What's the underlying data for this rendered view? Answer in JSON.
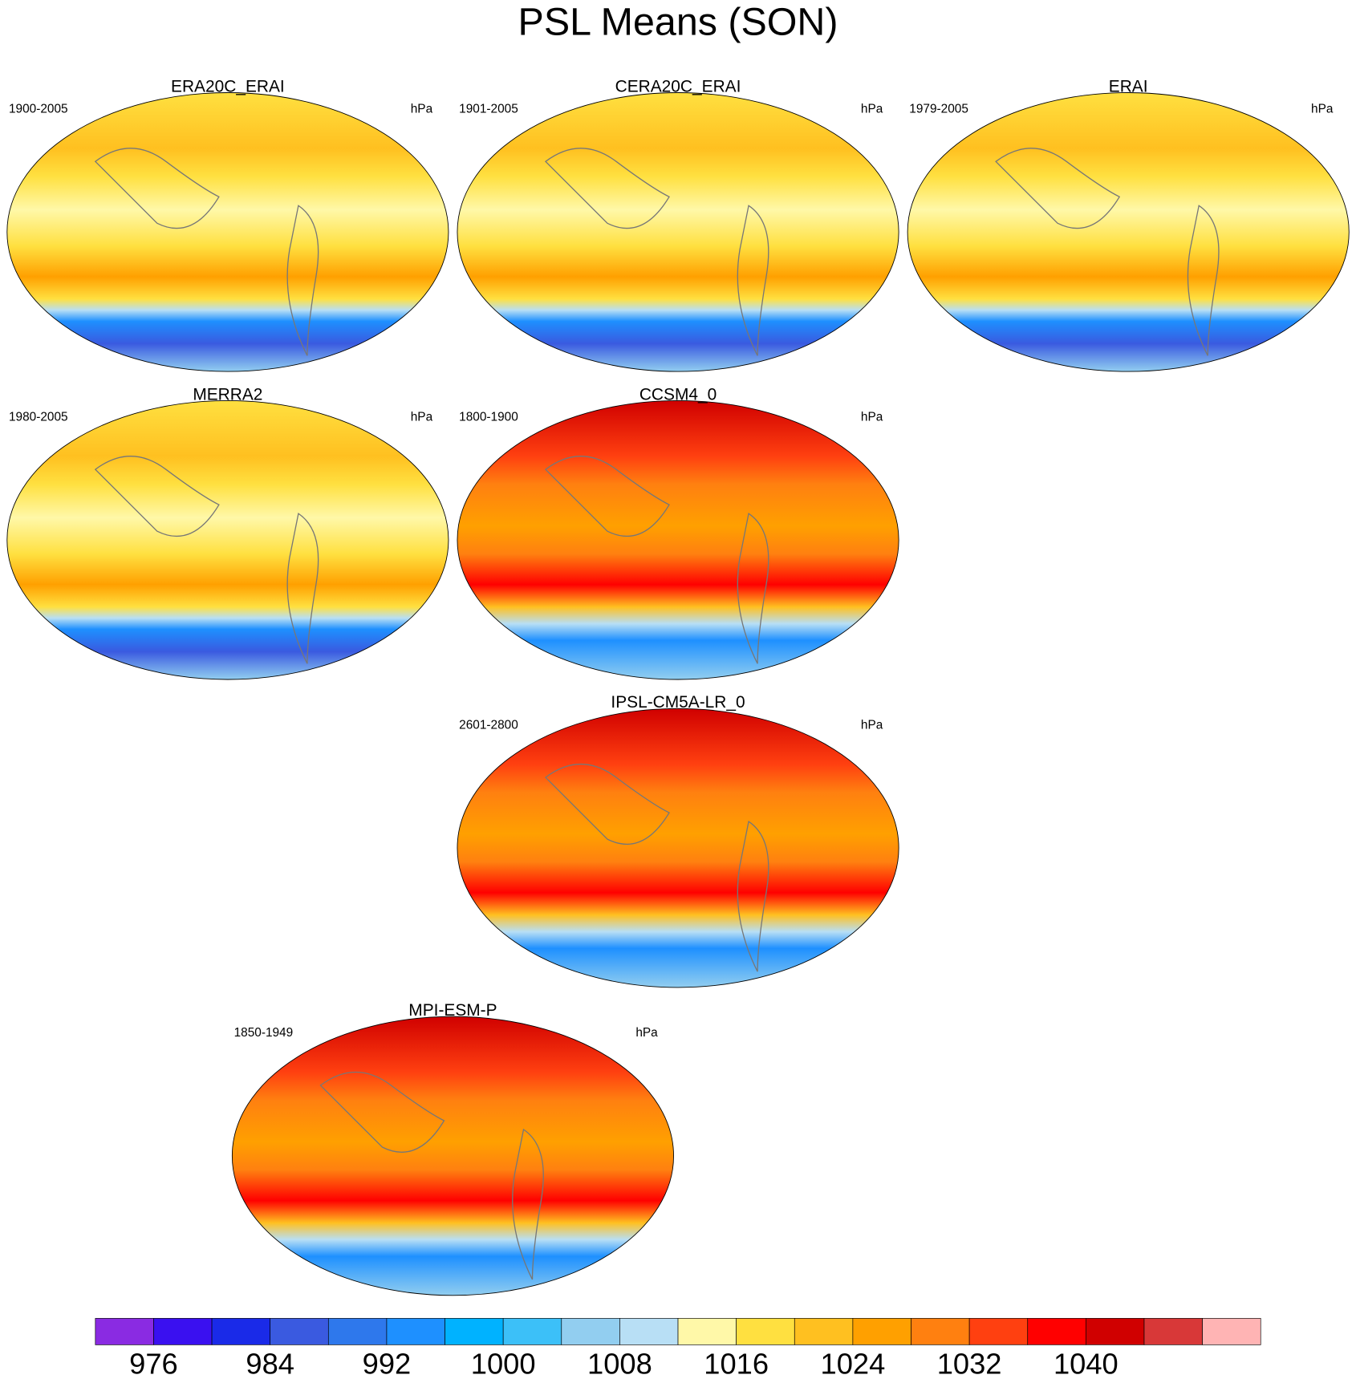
{
  "title": "PSL Means (SON)",
  "panels": [
    {
      "title": "ERA20C_ERAI",
      "period": "1900-2005",
      "units": "hPa"
    },
    {
      "title": "CERA20C_ERAI",
      "period": "1901-2005",
      "units": "hPa"
    },
    {
      "title": "ERAI",
      "period": "1979-2005",
      "units": "hPa"
    },
    {
      "title": "MERRA2",
      "period": "1980-2005",
      "units": "hPa"
    },
    {
      "title": "CCSM4_0",
      "period": "1800-1900",
      "units": "hPa"
    },
    {
      "title": "IPSL-CM5A-LR_0",
      "period": "2601-2800",
      "units": "hPa"
    },
    {
      "title": "MPI-ESM-P",
      "period": "1850-1949",
      "units": "hPa"
    }
  ],
  "colorbar": {
    "colors": [
      "#8a2be2",
      "#3a10f0",
      "#1a2ae8",
      "#3a5ae0",
      "#2e78ec",
      "#1e90ff",
      "#00b2ff",
      "#3cc0f8",
      "#92cef0",
      "#b8dff5",
      "#fff8a8",
      "#ffe040",
      "#ffc020",
      "#ffa000",
      "#ff8010",
      "#ff4010",
      "#ff0000",
      "#d00000",
      "#d83838",
      "#ffb4b4"
    ],
    "labels": [
      976,
      984,
      992,
      1000,
      1008,
      1016,
      1024,
      1032,
      1040
    ]
  }
}
